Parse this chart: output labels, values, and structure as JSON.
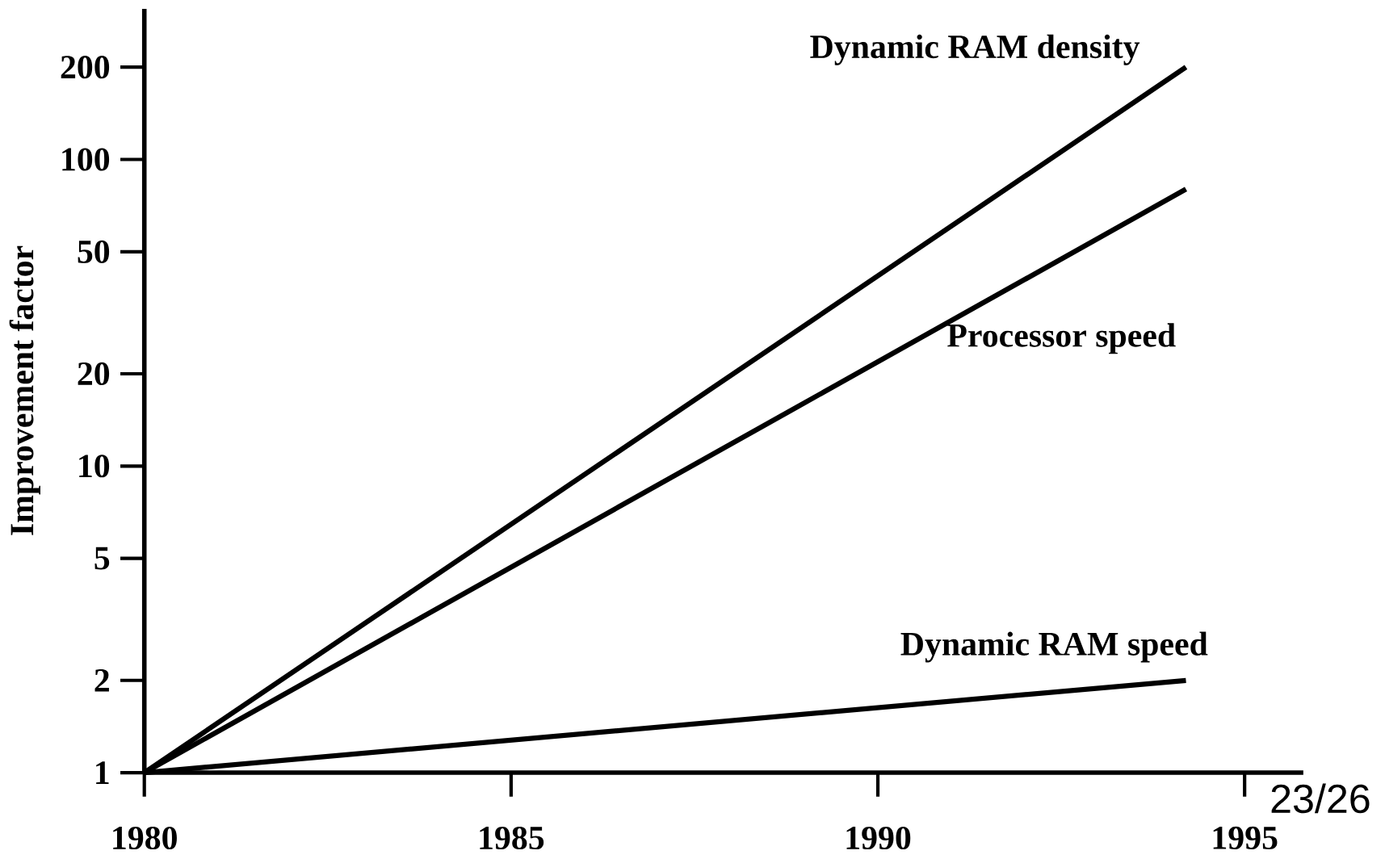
{
  "chart_data": {
    "type": "line",
    "ylabel": "Improvement factor",
    "log": "y",
    "grid": false,
    "legend": false,
    "marker": "none",
    "line_style": "solid",
    "xlim": [
      1980,
      1995.8
    ],
    "ylim": [
      1,
      310
    ],
    "xticks": [
      1980,
      1985,
      1990,
      1995
    ],
    "yticks": [
      1,
      2,
      5,
      10,
      20,
      50,
      100,
      200
    ],
    "x": [
      1980,
      1994.2
    ],
    "series": [
      {
        "name": "Dynamic RAM density",
        "color": "#000000",
        "values": [
          1,
          200
        ]
      },
      {
        "name": "Processor speed",
        "color": "#000000",
        "values": [
          1,
          80
        ]
      },
      {
        "name": "Dynamic RAM speed",
        "color": "#000000",
        "values": [
          1,
          2
        ]
      }
    ],
    "annotations": [
      "23/26"
    ]
  }
}
